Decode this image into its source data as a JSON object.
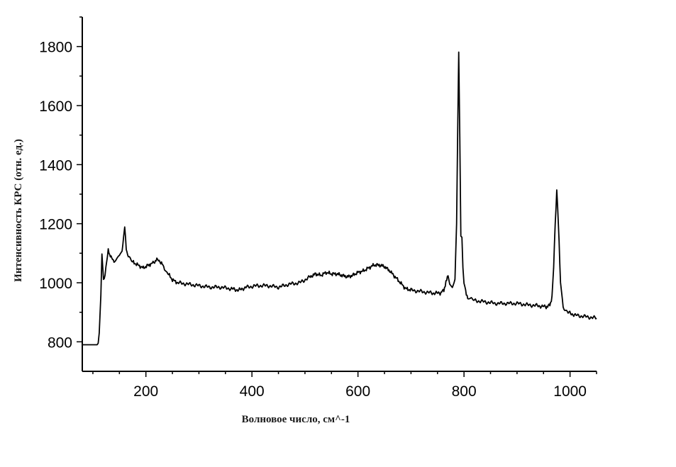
{
  "chart_data": {
    "type": "line",
    "title": "",
    "xlabel": "Волновое число, см^-1",
    "ylabel": "Интенсивность КРС (отн. ед.)",
    "xlim": [
      80,
      1050
    ],
    "ylim": [
      700,
      1900
    ],
    "x_ticks": [
      "200",
      "400",
      "600",
      "800",
      "1000"
    ],
    "y_ticks": [
      "800",
      "1000",
      "1200",
      "1400",
      "1600",
      "1800"
    ],
    "grid": false,
    "legend": "none",
    "series": [
      {
        "color": "#000000",
        "x": [
          80,
          100,
          108,
          110,
          112,
          115,
          117,
          120,
          123,
          126,
          129,
          133,
          137,
          140,
          145,
          150,
          155,
          158,
          160,
          163,
          167,
          175,
          185,
          195,
          205,
          212,
          218,
          222,
          228,
          235,
          240,
          250,
          260,
          280,
          300,
          320,
          340,
          360,
          375,
          390,
          410,
          430,
          450,
          470,
          490,
          510,
          520,
          530,
          540,
          550,
          560,
          570,
          580,
          590,
          600,
          610,
          620,
          630,
          640,
          650,
          660,
          670,
          680,
          690,
          700,
          720,
          740,
          755,
          762,
          766,
          770,
          773,
          778,
          783,
          786,
          788,
          790,
          792,
          794,
          796,
          798,
          800,
          803,
          807,
          812,
          820,
          840,
          860,
          880,
          900,
          920,
          940,
          955,
          962,
          966,
          969,
          972,
          975,
          978,
          982,
          987,
          995,
          1010,
          1030,
          1050
        ],
        "y": [
          790,
          790,
          790,
          795,
          830,
          960,
          1100,
          1010,
          1030,
          1070,
          1110,
          1090,
          1080,
          1075,
          1085,
          1090,
          1110,
          1150,
          1190,
          1110,
          1090,
          1070,
          1060,
          1050,
          1060,
          1065,
          1075,
          1080,
          1070,
          1050,
          1035,
          1010,
          1000,
          995,
          990,
          985,
          985,
          980,
          975,
          985,
          990,
          990,
          985,
          995,
          1000,
          1020,
          1030,
          1025,
          1035,
          1030,
          1030,
          1025,
          1020,
          1025,
          1035,
          1040,
          1050,
          1060,
          1060,
          1055,
          1040,
          1020,
          1000,
          980,
          975,
          970,
          965,
          965,
          975,
          1000,
          1030,
          990,
          985,
          1010,
          1200,
          1500,
          1780,
          1500,
          1160,
          1150,
          1050,
          1000,
          970,
          950,
          945,
          940,
          935,
          930,
          930,
          930,
          925,
          922,
          918,
          925,
          950,
          1050,
          1200,
          1315,
          1200,
          1000,
          920,
          900,
          890,
          885,
          880
        ]
      }
    ]
  }
}
